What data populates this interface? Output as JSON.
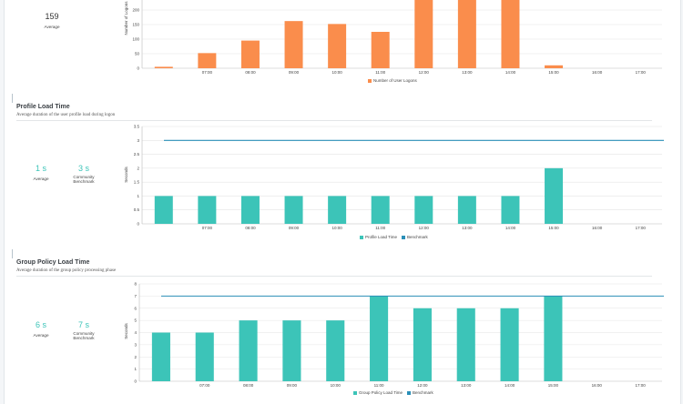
{
  "colors": {
    "logon": "#fa8d4c",
    "load": "#3cc4b8",
    "benchmark": "#2a8fb8",
    "grid": "#e4e4e4"
  },
  "sections": {
    "logons": {
      "average_value": "159",
      "average_label": "Average"
    },
    "profile": {
      "title": "Profile Load Time",
      "subtitle": "Average duration of the user profile load during logon",
      "average_value": "1 s",
      "average_label": "Average",
      "benchmark_value": "3 s",
      "benchmark_label_1": "Community",
      "benchmark_label_2": "Benchmark"
    },
    "gpo": {
      "title": "Group Policy Load Time",
      "subtitle": "Average duration of the group policy processing phase",
      "average_value": "6 s",
      "average_label": "Average",
      "benchmark_value": "7 s",
      "benchmark_label_1": "Community",
      "benchmark_label_2": "Benchmark"
    }
  },
  "chart_data": [
    {
      "type": "bar",
      "ylabel": "Number of Logons",
      "categories": [
        "",
        "07:00",
        "08:00",
        "09:00",
        "10:00",
        "11:00",
        "12:00",
        "13:00",
        "14:00",
        "15:00",
        "16:00",
        "17:00"
      ],
      "series": [
        {
          "name": "Number of User Logons",
          "values": [
            5,
            52,
            95,
            162,
            152,
            125,
            350,
            350,
            350,
            10,
            0,
            0
          ]
        }
      ],
      "y_ticks": [
        "250",
        "200",
        "150",
        "100",
        "50",
        "0"
      ],
      "grid": true
    },
    {
      "type": "bar",
      "ylabel": "Seconds",
      "categories": [
        "",
        "07:00",
        "08:00",
        "09:00",
        "10:00",
        "11:00",
        "12:00",
        "13:00",
        "14:00",
        "15:00",
        "16:00",
        "17:00"
      ],
      "series": [
        {
          "name": "Profile Load Time",
          "values": [
            1,
            1,
            1,
            1,
            1,
            1,
            1,
            1,
            1,
            2,
            0,
            0
          ]
        },
        {
          "name": "Benchmark",
          "values": [
            3,
            3,
            3,
            3,
            3,
            3,
            3,
            3,
            3,
            3,
            3,
            3
          ]
        }
      ],
      "y_ticks": [
        "3.5",
        "3",
        "2.5",
        "2",
        "1.5",
        "1",
        "0.5",
        "0"
      ],
      "ylim": [
        0,
        3.5
      ],
      "grid": true
    },
    {
      "type": "bar",
      "ylabel": "Seconds",
      "categories": [
        "",
        "07:00",
        "08:00",
        "09:00",
        "10:00",
        "11:00",
        "12:00",
        "13:00",
        "14:00",
        "15:00",
        "16:00",
        "17:00"
      ],
      "series": [
        {
          "name": "Group Policy Load Time",
          "values": [
            4,
            4,
            5,
            5,
            5,
            7,
            6,
            6,
            6,
            7,
            0,
            0
          ]
        },
        {
          "name": "Benchmark",
          "values": [
            7,
            7,
            7,
            7,
            7,
            7,
            7,
            7,
            7,
            7,
            7,
            7
          ]
        }
      ],
      "y_ticks": [
        "8",
        "7",
        "6",
        "5",
        "4",
        "3",
        "2",
        "1",
        "0"
      ],
      "ylim": [
        0,
        8
      ],
      "grid": true
    }
  ]
}
